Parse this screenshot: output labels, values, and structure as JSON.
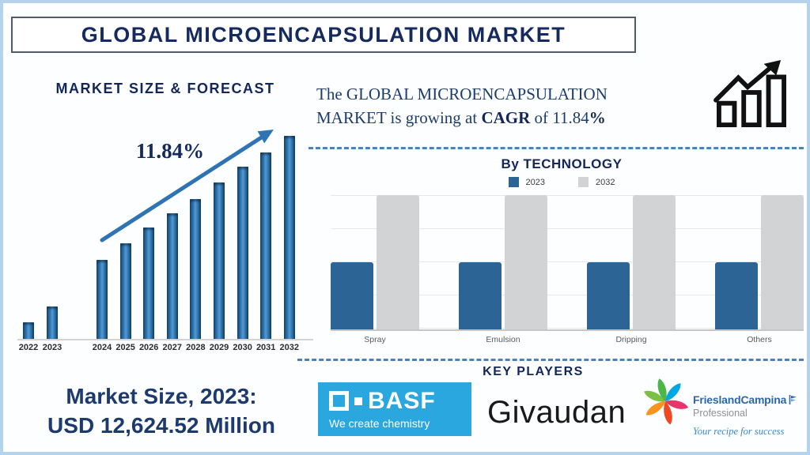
{
  "title": {
    "text": "GLOBAL MICROENCAPSULATION MARKET"
  },
  "colors": {
    "frame": "#b5d3ec",
    "navy_text": "#152a5e",
    "bar_blue": "#2f74ae",
    "tech_blue": "#2d6496",
    "tech_gray": "#d1d3d4",
    "dashed_divider": "#4d82b8",
    "basf_blue": "#2ba7df",
    "fc_blue": "#2b66b0",
    "arrow_blue": "#2e74b5"
  },
  "left_chart": {
    "heading": "MARKET SIZE & FORECAST",
    "cagr_label": "11.84%"
  },
  "growth_note": {
    "part1": "The GLOBAL MICROENCAPSULATION MARKET is growing at ",
    "bold1": "CAGR",
    "part2": " of 11.84",
    "bold2": "%"
  },
  "tech_section": {
    "heading": "By TECHNOLOGY",
    "legend": [
      {
        "label": "2023",
        "color": "#2d6496"
      },
      {
        "label": "2032",
        "color": "#d1d3d4"
      }
    ]
  },
  "market_size": {
    "line1": "Market Size, 2023:",
    "line2": "USD 12,624.52 Million"
  },
  "key_players": {
    "heading": "KEY PLAYERS",
    "basf": {
      "name": "BASF",
      "tagline": "We create chemistry"
    },
    "givaudan": {
      "name": "Givaudan"
    },
    "frieslandcampina": {
      "name": "FrieslandCampina",
      "sub": "Professional",
      "tagline": "Your recipe for success"
    }
  },
  "icons": {
    "growth": "bar-chart-growth-arrow-icon",
    "trend_arrow": "upward-trend-arrow",
    "basf_mark": "basf-squares-mark",
    "fc_star": "frieslandcampina-star-logo",
    "fc_flag": "flag-icon"
  },
  "chart_data": [
    {
      "type": "bar",
      "title": "MARKET SIZE & FORECAST",
      "categories": [
        "2022",
        "2023",
        "2024",
        "2025",
        "2026",
        "2027",
        "2028",
        "2029",
        "2030",
        "2031",
        "2032"
      ],
      "values": [
        8,
        16,
        39,
        47,
        55,
        62,
        69,
        77,
        85,
        92,
        100
      ],
      "unit": "relative bar height, % of 2032 bar (no y-axis shown)",
      "annotations": [
        "CAGR arrow 11.84% rising left-to-right",
        "known point: 2023 = USD 12,624.52 Million"
      ],
      "xlabel": "",
      "ylabel": "",
      "grid": false,
      "legend": false
    },
    {
      "type": "bar",
      "title": "By TECHNOLOGY",
      "categories": [
        "Spray",
        "Emulsion",
        "Dripping",
        "Others"
      ],
      "series": [
        {
          "name": "2023",
          "color": "#2d6496",
          "values": [
            50,
            50,
            50,
            50
          ]
        },
        {
          "name": "2032",
          "color": "#d1d3d4",
          "values": [
            100,
            100,
            100,
            100
          ]
        }
      ],
      "unit": "relative bar height, % of plot height (no y-axis shown)",
      "ylim": [
        0,
        100
      ],
      "grid": true,
      "legend_position": "top-center"
    }
  ]
}
